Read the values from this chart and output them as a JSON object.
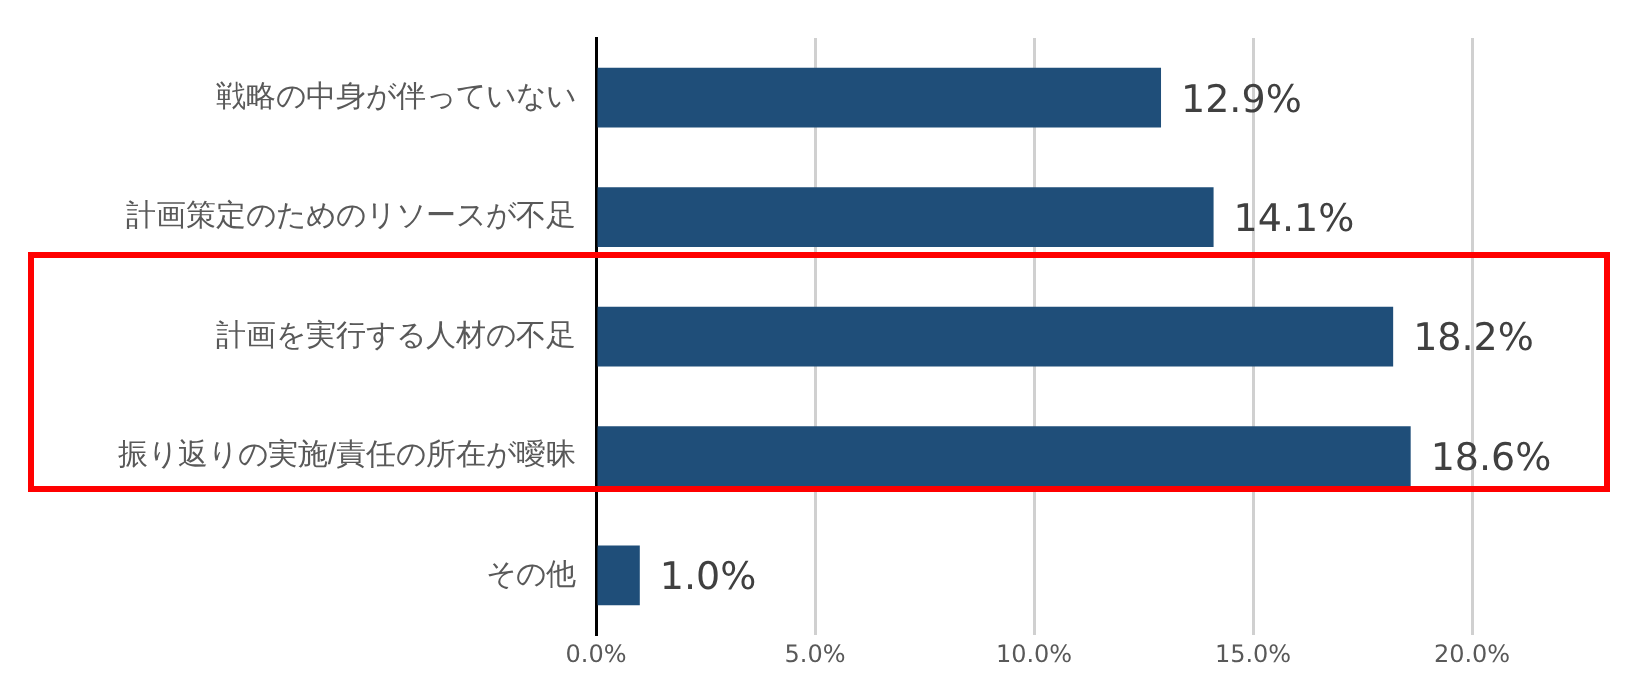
{
  "chart_data": {
    "type": "bar",
    "orientation": "horizontal",
    "categories": [
      "戦略の中身が伴っていない",
      "計画策定のためのリソースが不足",
      "計画を実行する人材の不足",
      "振り返りの実施/責任の所在が曖昧",
      "その他"
    ],
    "values": [
      12.9,
      14.1,
      18.2,
      18.6,
      1.0
    ],
    "value_labels": [
      "12.9%",
      "14.1%",
      "18.2%",
      "18.6%",
      "1.0%"
    ],
    "color": "#1f4e79",
    "xlim": [
      0,
      20
    ],
    "xticks": [
      {
        "value": 0,
        "label": "0.0%"
      },
      {
        "value": 5,
        "label": "5.0%"
      },
      {
        "value": 10,
        "label": "10.0%"
      },
      {
        "value": 15,
        "label": "15.0%"
      },
      {
        "value": 20,
        "label": "20.0%"
      }
    ],
    "grid": "x"
  }
}
